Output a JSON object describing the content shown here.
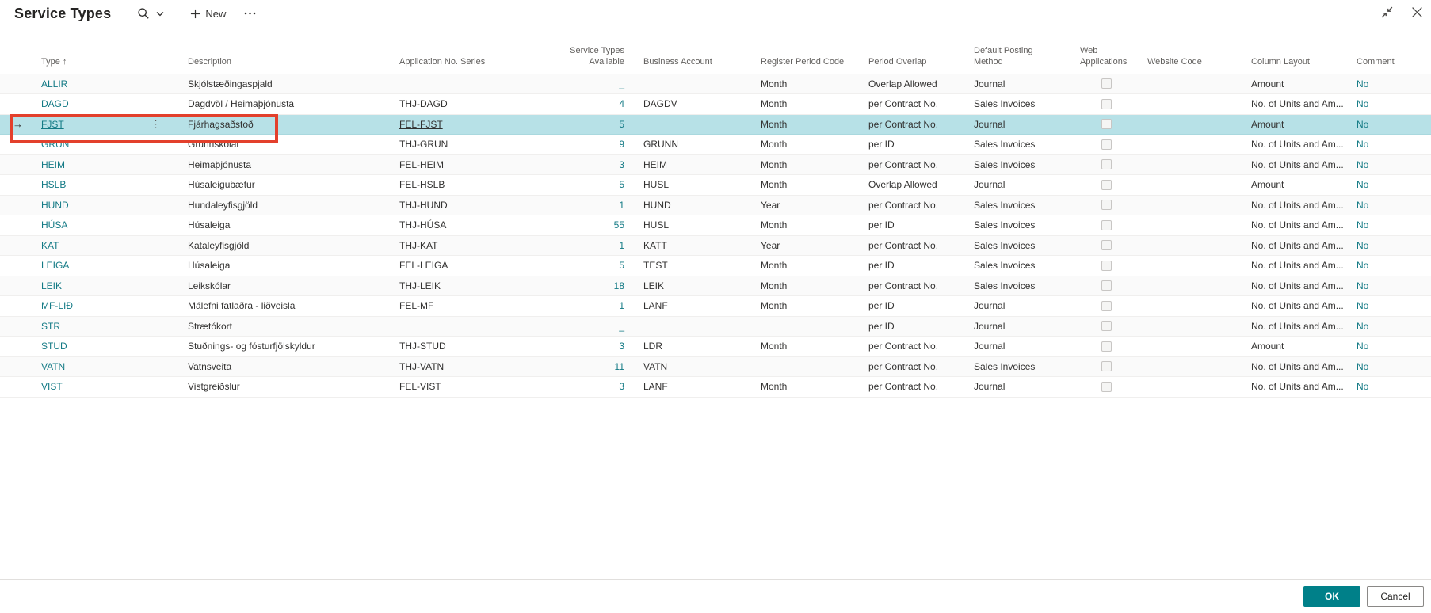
{
  "header": {
    "title": "Service Types",
    "new_label": "New",
    "icons": {
      "search": "search-icon",
      "chevron": "chevron-down-icon",
      "plus": "plus-icon",
      "more": "more-options-icon",
      "collapse": "collapse-window-icon",
      "close": "close-icon"
    }
  },
  "table": {
    "sort_arrow": "↑",
    "current_row_arrow": "→",
    "row_more_glyph": "⋮",
    "empty_value_glyph": "_",
    "columns": [
      {
        "key": "type",
        "label": "Type",
        "align": "left"
      },
      {
        "key": "description",
        "label": "Description",
        "align": "left"
      },
      {
        "key": "app_series",
        "label": "Application No. Series",
        "align": "left"
      },
      {
        "key": "available",
        "label": "Service Types Available",
        "align": "right"
      },
      {
        "key": "business",
        "label": "Business Account",
        "align": "left"
      },
      {
        "key": "register",
        "label": "Register Period Code",
        "align": "left"
      },
      {
        "key": "overlap",
        "label": "Period Overlap",
        "align": "left"
      },
      {
        "key": "posting",
        "label": "Default Posting Method",
        "align": "left"
      },
      {
        "key": "web_app",
        "label": "Web Applications",
        "align": "left"
      },
      {
        "key": "website",
        "label": "Website Code",
        "align": "left"
      },
      {
        "key": "column_layout",
        "label": "Column Layout",
        "align": "left"
      },
      {
        "key": "comment",
        "label": "Comment",
        "align": "left"
      }
    ],
    "rows": [
      {
        "type": "ALLIR",
        "description": "Skjólstæðingaspjald",
        "app_series": "",
        "available": "_",
        "business": "",
        "register": "Month",
        "overlap": "Overlap Allowed",
        "posting": "Journal",
        "web_app": false,
        "website": "",
        "column_layout": "Amount",
        "comment": "No",
        "selected": false
      },
      {
        "type": "DAGD",
        "description": "Dagdvöl / Heimaþjónusta",
        "app_series": "THJ-DAGD",
        "available": "4",
        "business": "DAGDV",
        "register": "Month",
        "overlap": "per Contract No.",
        "posting": "Sales Invoices",
        "web_app": false,
        "website": "",
        "column_layout": "No. of Units and Am...",
        "comment": "No",
        "selected": false
      },
      {
        "type": "FJST",
        "description": "Fjárhagsaðstoð",
        "app_series": "FEL-FJST",
        "available": "5",
        "business": "",
        "register": "Month",
        "overlap": "per Contract No.",
        "posting": "Journal",
        "web_app": false,
        "website": "",
        "column_layout": "Amount",
        "comment": "No",
        "selected": true
      },
      {
        "type": "GRUN",
        "description": "Grunnskólar",
        "app_series": "THJ-GRUN",
        "available": "9",
        "business": "GRUNN",
        "register": "Month",
        "overlap": "per ID",
        "posting": "Sales Invoices",
        "web_app": false,
        "website": "",
        "column_layout": "No. of Units and Am...",
        "comment": "No",
        "selected": false
      },
      {
        "type": "HEIM",
        "description": "Heimaþjónusta",
        "app_series": "FEL-HEIM",
        "available": "3",
        "business": "HEIM",
        "register": "Month",
        "overlap": "per Contract No.",
        "posting": "Sales Invoices",
        "web_app": false,
        "website": "",
        "column_layout": "No. of Units and Am...",
        "comment": "No",
        "selected": false
      },
      {
        "type": "HSLB",
        "description": "Húsaleigubætur",
        "app_series": "FEL-HSLB",
        "available": "5",
        "business": "HUSL",
        "register": "Month",
        "overlap": "Overlap Allowed",
        "posting": "Journal",
        "web_app": false,
        "website": "",
        "column_layout": "Amount",
        "comment": "No",
        "selected": false
      },
      {
        "type": "HUND",
        "description": "Hundaleyfisgjöld",
        "app_series": "THJ-HUND",
        "available": "1",
        "business": "HUND",
        "register": "Year",
        "overlap": "per Contract No.",
        "posting": "Sales Invoices",
        "web_app": false,
        "website": "",
        "column_layout": "No. of Units and Am...",
        "comment": "No",
        "selected": false
      },
      {
        "type": "HÚSA",
        "description": "Húsaleiga",
        "app_series": "THJ-HÚSA",
        "available": "55",
        "business": "HUSL",
        "register": "Month",
        "overlap": "per ID",
        "posting": "Sales Invoices",
        "web_app": false,
        "website": "",
        "column_layout": "No. of Units and Am...",
        "comment": "No",
        "selected": false
      },
      {
        "type": "KAT",
        "description": "Kataleyfisgjöld",
        "app_series": "THJ-KAT",
        "available": "1",
        "business": "KATT",
        "register": "Year",
        "overlap": "per Contract No.",
        "posting": "Sales Invoices",
        "web_app": false,
        "website": "",
        "column_layout": "No. of Units and Am...",
        "comment": "No",
        "selected": false
      },
      {
        "type": "LEIGA",
        "description": "Húsaleiga",
        "app_series": "FEL-LEIGA",
        "available": "5",
        "business": "TEST",
        "register": "Month",
        "overlap": "per ID",
        "posting": "Sales Invoices",
        "web_app": false,
        "website": "",
        "column_layout": "No. of Units and Am...",
        "comment": "No",
        "selected": false
      },
      {
        "type": "LEIK",
        "description": "Leikskólar",
        "app_series": "THJ-LEIK",
        "available": "18",
        "business": "LEIK",
        "register": "Month",
        "overlap": "per Contract No.",
        "posting": "Sales Invoices",
        "web_app": false,
        "website": "",
        "column_layout": "No. of Units and Am...",
        "comment": "No",
        "selected": false
      },
      {
        "type": "MF-LIÐ",
        "description": "Málefni fatlaðra - liðveisla",
        "app_series": "FEL-MF",
        "available": "1",
        "business": "LANF",
        "register": "Month",
        "overlap": "per ID",
        "posting": "Journal",
        "web_app": false,
        "website": "",
        "column_layout": "No. of Units and Am...",
        "comment": "No",
        "selected": false
      },
      {
        "type": "STR",
        "description": "Strætókort",
        "app_series": "",
        "available": "_",
        "business": "",
        "register": "",
        "overlap": "per ID",
        "posting": "Journal",
        "web_app": false,
        "website": "",
        "column_layout": "No. of Units and Am...",
        "comment": "No",
        "selected": false
      },
      {
        "type": "STUD",
        "description": "Stuðnings- og fósturfjölskyldur",
        "app_series": "THJ-STUD",
        "available": "3",
        "business": "LDR",
        "register": "Month",
        "overlap": "per Contract No.",
        "posting": "Journal",
        "web_app": false,
        "website": "",
        "column_layout": "Amount",
        "comment": "No",
        "selected": false
      },
      {
        "type": "VATN",
        "description": "Vatnsveita",
        "app_series": "THJ-VATN",
        "available": "11",
        "business": "VATN",
        "register": "",
        "overlap": "per Contract No.",
        "posting": "Sales Invoices",
        "web_app": false,
        "website": "",
        "column_layout": "No. of Units and Am...",
        "comment": "No",
        "selected": false
      },
      {
        "type": "VIST",
        "description": "Vistgreiðslur",
        "app_series": "FEL-VIST",
        "available": "3",
        "business": "LANF",
        "register": "Month",
        "overlap": "per Contract No.",
        "posting": "Journal",
        "web_app": false,
        "website": "",
        "column_layout": "No. of Units and Am...",
        "comment": "No",
        "selected": false
      }
    ]
  },
  "footer": {
    "ok_label": "OK",
    "cancel_label": "Cancel"
  },
  "colors": {
    "accent_teal": "#008089",
    "link_teal": "#137a85",
    "selected_row": "#b7e1e7",
    "annotation_red": "#e3402c"
  }
}
